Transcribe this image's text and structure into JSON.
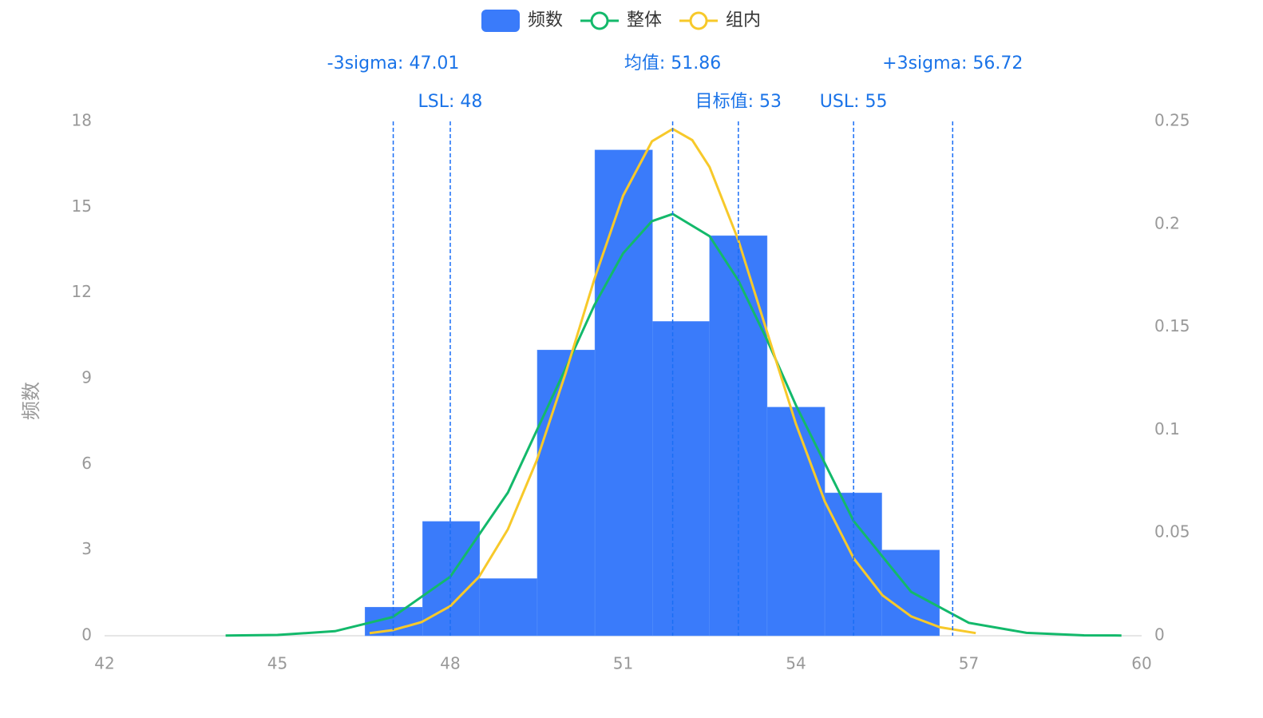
{
  "chart_data": {
    "type": "histogram",
    "y_label": "频数",
    "bins": [
      46.52,
      47.52,
      48.51,
      49.51,
      50.51,
      51.51,
      52.5,
      53.5,
      54.5,
      55.49,
      56.49
    ],
    "series": [
      {
        "name": "频数",
        "color": "#3a7bfa",
        "values": [
          1,
          4,
          2,
          10,
          17,
          11,
          14,
          8,
          5,
          3
        ]
      },
      {
        "name": "整体",
        "color": "#13b96b",
        "axis": "y2",
        "x": [
          44.1,
          45,
          46,
          47,
          48,
          49,
          50,
          50.5,
          51,
          51.5,
          51.86,
          52.5,
          53,
          53.5,
          54,
          55,
          56,
          57,
          58,
          59,
          59.65
        ],
        "values": [
          0.0001,
          0.0004,
          0.0022,
          0.0091,
          0.0287,
          0.0696,
          0.1298,
          0.1606,
          0.1859,
          0.2015,
          0.205,
          0.1942,
          0.1727,
          0.1437,
          0.112,
          0.0558,
          0.0213,
          0.0063,
          0.0014,
          0.0002,
          0.0001
        ]
      },
      {
        "name": "组内",
        "color": "#f7c92a",
        "axis": "y2",
        "x": [
          46.6,
          47,
          47.5,
          48,
          48.5,
          49,
          49.5,
          50,
          50.5,
          51,
          51.5,
          51.86,
          52.2,
          52.5,
          53,
          53.5,
          54,
          54.5,
          55,
          55.5,
          56,
          56.5,
          57.12
        ],
        "values": [
          0.0013,
          0.0027,
          0.0066,
          0.0144,
          0.0287,
          0.0518,
          0.0852,
          0.1274,
          0.1732,
          0.2139,
          0.2403,
          0.2463,
          0.2409,
          0.2278,
          0.1923,
          0.1475,
          0.1029,
          0.0653,
          0.0377,
          0.0197,
          0.0094,
          0.0041,
          0.0013
        ]
      }
    ],
    "xlim": [
      42,
      60
    ],
    "xticks": [
      42,
      45,
      48,
      51,
      54,
      57,
      60
    ],
    "ylim": [
      0,
      18
    ],
    "yticks": [
      0,
      3,
      6,
      9,
      12,
      15,
      18
    ],
    "y2lim": [
      0,
      0.25
    ],
    "y2ticks": [
      0,
      0.05,
      0.1,
      0.15,
      0.2,
      0.25
    ],
    "reference_color": "#1a6ef5",
    "reference_lines": [
      {
        "label": "-3sigma: 47.01",
        "value": 47.01
      },
      {
        "label": "LSL: 48",
        "value": 48
      },
      {
        "label": "均值: 51.86",
        "value": 51.86
      },
      {
        "label": "目标值: 53",
        "value": 53
      },
      {
        "label": "USL: 55",
        "value": 55
      },
      {
        "label": "+3sigma: 56.72",
        "value": 56.72
      }
    ]
  }
}
